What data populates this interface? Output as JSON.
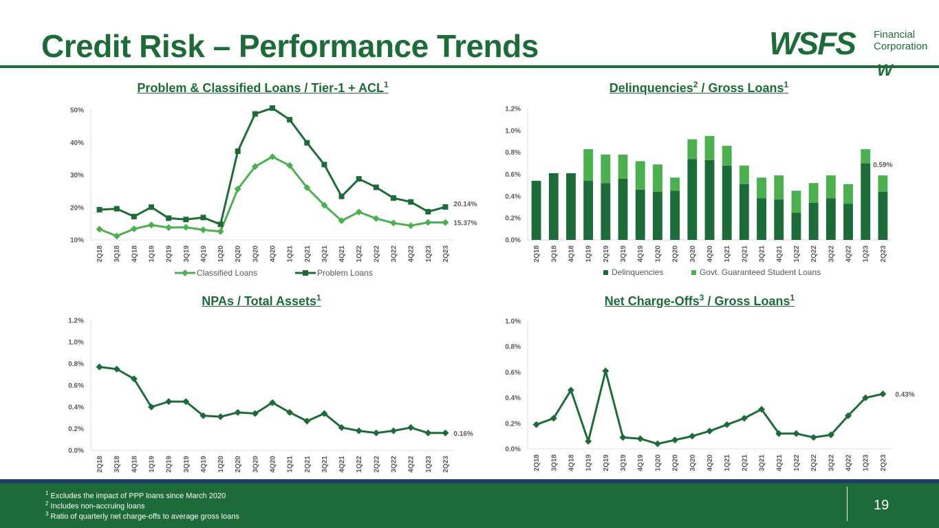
{
  "page": {
    "title": "Credit Risk – Performance Trends",
    "page_number": "19",
    "logo": {
      "wordmark": "WSFS",
      "line1": "Financial",
      "line2": "Corporation",
      "mark": "W"
    },
    "footnotes": [
      {
        "marker": "1",
        "text": "Excludes the impact of PPP loans since March 2020"
      },
      {
        "marker": "2",
        "text": "Includes non-accruing loans"
      },
      {
        "marker": "3",
        "text": "Ratio of quarterly net charge-offs to average gross loans"
      }
    ],
    "colors": {
      "dark_green": "#1e6b3a",
      "light_green": "#4caf50",
      "navy": "#1b3f6b"
    }
  },
  "chart_data": [
    {
      "id": "problem-classified",
      "type": "line",
      "title": "Problem & Classified Loans / Tier-1 + ACL",
      "title_sup": "1",
      "categories": [
        "2Q18",
        "3Q18",
        "4Q18",
        "1Q19",
        "2Q19",
        "3Q19",
        "4Q19",
        "1Q20",
        "2Q20",
        "3Q20",
        "4Q20",
        "1Q21",
        "2Q21",
        "3Q21",
        "4Q21",
        "1Q22",
        "2Q22",
        "3Q22",
        "4Q22",
        "1Q23",
        "2Q23"
      ],
      "ylim": [
        10,
        50
      ],
      "yticks": [
        10,
        20,
        30,
        40,
        50
      ],
      "ytick_labels": [
        "10%",
        "20%",
        "30%",
        "40%",
        "50%"
      ],
      "marker": "square",
      "series": [
        {
          "name": "Classified Loans",
          "color": "#4caf50",
          "marker": "diamond",
          "values": [
            13.3,
            11.2,
            13.4,
            14.6,
            13.8,
            13.9,
            13.1,
            12.6,
            25.7,
            32.6,
            35.6,
            32.9,
            26.1,
            20.7,
            15.9,
            18.6,
            16.6,
            15.2,
            14.4,
            15.4,
            15.37
          ],
          "end_label": "15.37%"
        },
        {
          "name": "Problem Loans",
          "color": "#1e6b3a",
          "marker": "square",
          "values": [
            19.3,
            19.6,
            17.2,
            20.1,
            16.7,
            16.3,
            16.9,
            14.8,
            37.3,
            48.8,
            50.6,
            47.0,
            39.9,
            33.2,
            23.4,
            28.8,
            26.2,
            22.9,
            21.7,
            18.7,
            20.14
          ],
          "end_label": "20.14%"
        }
      ],
      "legend": "bottom"
    },
    {
      "id": "delinquencies",
      "type": "bar",
      "stacked": true,
      "title": "Delinquencies",
      "title_sup": "2",
      "title_rest": " / Gross Loans",
      "title_sup2": "1",
      "categories": [
        "2Q18",
        "3Q18",
        "4Q18",
        "1Q19",
        "2Q19",
        "3Q19",
        "4Q19",
        "1Q20",
        "2Q20",
        "3Q20",
        "4Q20",
        "1Q21",
        "2Q21",
        "3Q21",
        "4Q21",
        "1Q22",
        "2Q22",
        "3Q22",
        "4Q22",
        "1Q23",
        "2Q23"
      ],
      "ylim": [
        0,
        1.2
      ],
      "yticks": [
        0,
        0.2,
        0.4,
        0.6,
        0.8,
        1.0,
        1.2
      ],
      "ytick_labels": [
        "0.0%",
        "0.2%",
        "0.4%",
        "0.6%",
        "0.8%",
        "1.0%",
        "1.2%"
      ],
      "series": [
        {
          "name": "Delinquencies",
          "color": "#1e6b3a",
          "values": [
            0.54,
            0.61,
            0.61,
            0.54,
            0.52,
            0.56,
            0.46,
            0.44,
            0.45,
            0.74,
            0.73,
            0.68,
            0.51,
            0.38,
            0.37,
            0.25,
            0.34,
            0.38,
            0.33,
            0.7,
            0.44
          ]
        },
        {
          "name": "Govt. Guaranteed Student Loans",
          "color": "#4caf50",
          "values": [
            0.0,
            0.0,
            0.0,
            0.29,
            0.26,
            0.22,
            0.26,
            0.25,
            0.12,
            0.18,
            0.22,
            0.18,
            0.17,
            0.19,
            0.22,
            0.2,
            0.18,
            0.21,
            0.18,
            0.13,
            0.15
          ]
        }
      ],
      "end_label": "0.59%",
      "legend": "bottom"
    },
    {
      "id": "npas",
      "type": "line",
      "title": "NPAs / Total Assets",
      "title_sup": "1",
      "categories": [
        "2Q18",
        "3Q18",
        "4Q18",
        "1Q19",
        "2Q19",
        "3Q19",
        "4Q19",
        "1Q20",
        "2Q20",
        "3Q20",
        "4Q20",
        "1Q21",
        "2Q21",
        "3Q21",
        "4Q21",
        "1Q22",
        "2Q22",
        "3Q22",
        "4Q22",
        "1Q23",
        "2Q23"
      ],
      "ylim": [
        0,
        1.2
      ],
      "yticks": [
        0,
        0.2,
        0.4,
        0.6,
        0.8,
        1.0,
        1.2
      ],
      "ytick_labels": [
        "0.0%",
        "0.2%",
        "0.4%",
        "0.6%",
        "0.8%",
        "1.0%",
        "1.2%"
      ],
      "series": [
        {
          "name": "NPAs / Total Assets",
          "color": "#1e6b3a",
          "marker": "diamond",
          "values": [
            0.77,
            0.75,
            0.66,
            0.4,
            0.45,
            0.45,
            0.32,
            0.31,
            0.35,
            0.34,
            0.44,
            0.35,
            0.27,
            0.34,
            0.21,
            0.18,
            0.16,
            0.18,
            0.21,
            0.16,
            0.16
          ],
          "end_label": "0.16%"
        }
      ]
    },
    {
      "id": "net-charge-offs",
      "type": "line",
      "title": "Net Charge-Offs",
      "title_sup": "3",
      "title_rest": " / Gross Loans",
      "title_sup2": "1",
      "categories": [
        "2Q18",
        "3Q18",
        "4Q18",
        "1Q19",
        "2Q19",
        "3Q19",
        "4Q19",
        "1Q20",
        "2Q20",
        "3Q20",
        "4Q20",
        "1Q21",
        "2Q21",
        "3Q21",
        "4Q21",
        "1Q22",
        "2Q22",
        "3Q22",
        "4Q22",
        "1Q23",
        "2Q23"
      ],
      "ylim": [
        0,
        1.0
      ],
      "yticks": [
        0,
        0.2,
        0.4,
        0.6,
        0.8,
        1.0
      ],
      "ytick_labels": [
        "0.0%",
        "0.2%",
        "0.4%",
        "0.6%",
        "0.8%",
        "1.0%"
      ],
      "series": [
        {
          "name": "Net Charge-Offs / Gross Loans",
          "color": "#1e6b3a",
          "marker": "diamond",
          "values": [
            0.19,
            0.24,
            0.46,
            0.06,
            0.61,
            0.09,
            0.08,
            0.04,
            0.07,
            0.1,
            0.14,
            0.19,
            0.24,
            0.31,
            0.12,
            0.12,
            0.09,
            0.11,
            0.26,
            0.4,
            0.43
          ],
          "end_label": "0.43%"
        }
      ]
    }
  ]
}
